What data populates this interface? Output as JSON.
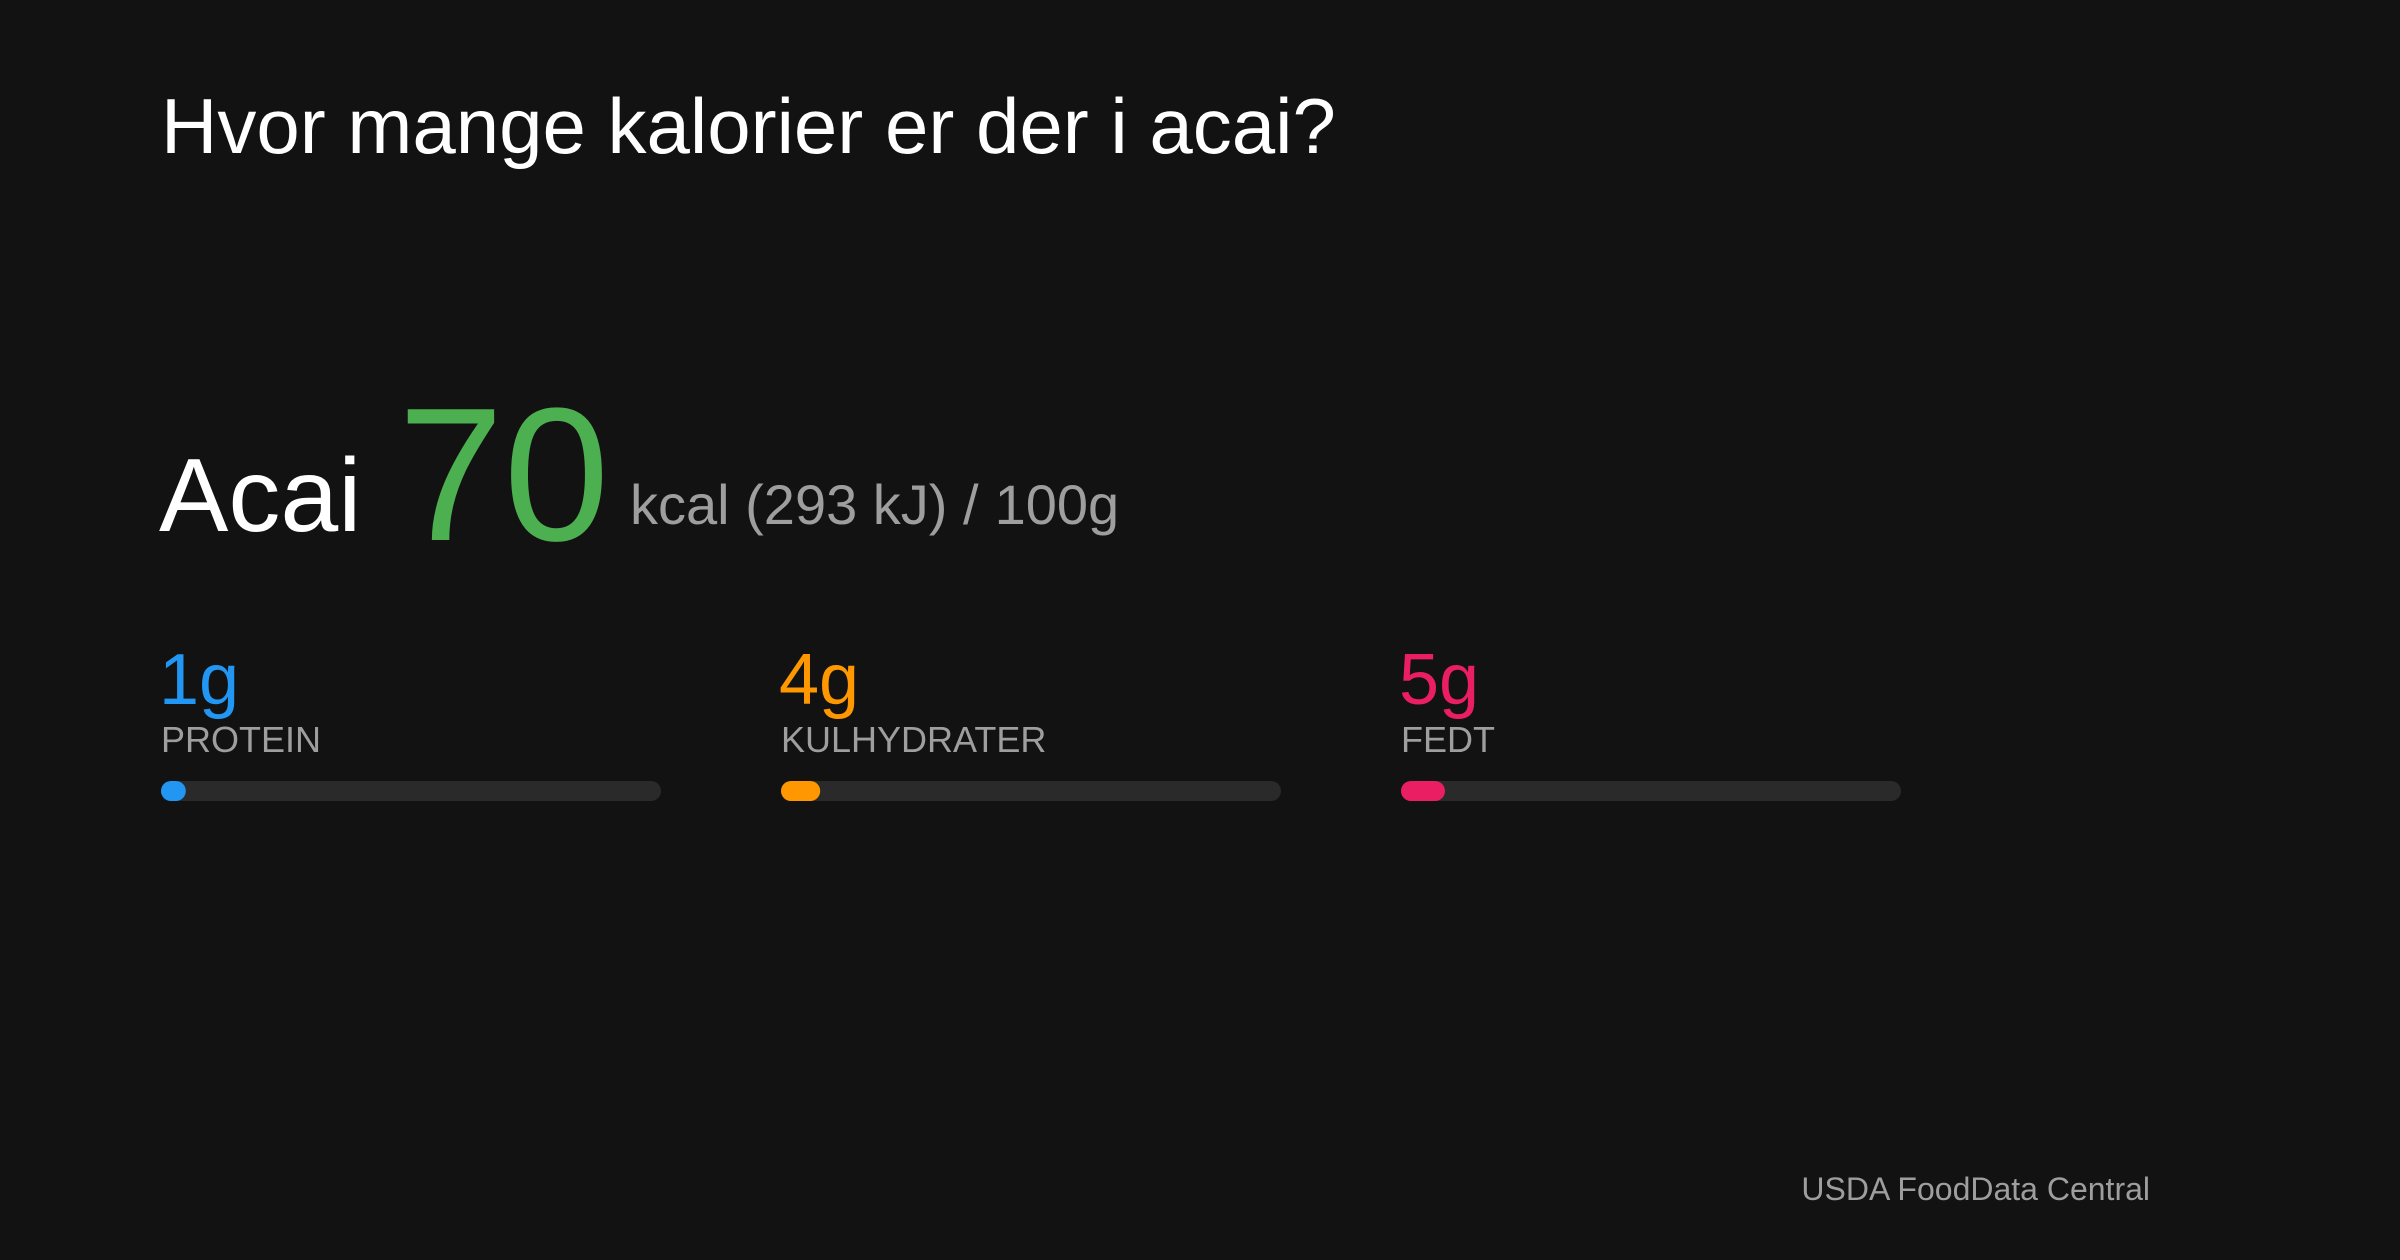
{
  "title": "Hvor mange kalorier er der i acai?",
  "food": "Acai",
  "kcal": 70,
  "kcal_color": "#4caf50",
  "energy_text": "kcal (293 kJ) /",
  "serving": {
    "value": 100,
    "label": "100g"
  },
  "macros": [
    {
      "amount": {
        "value": 1,
        "label": "1g"
      },
      "name": "PROTEIN",
      "color": "#2196f3"
    },
    {
      "amount": {
        "value": 4,
        "label": "4g"
      },
      "name": "KULHYDRATER",
      "color": "#ff9800"
    },
    {
      "amount": {
        "value": 5,
        "label": "5g"
      },
      "name": "FEDT",
      "color": "#e91e63"
    }
  ],
  "source": "USDA FoodData Central"
}
